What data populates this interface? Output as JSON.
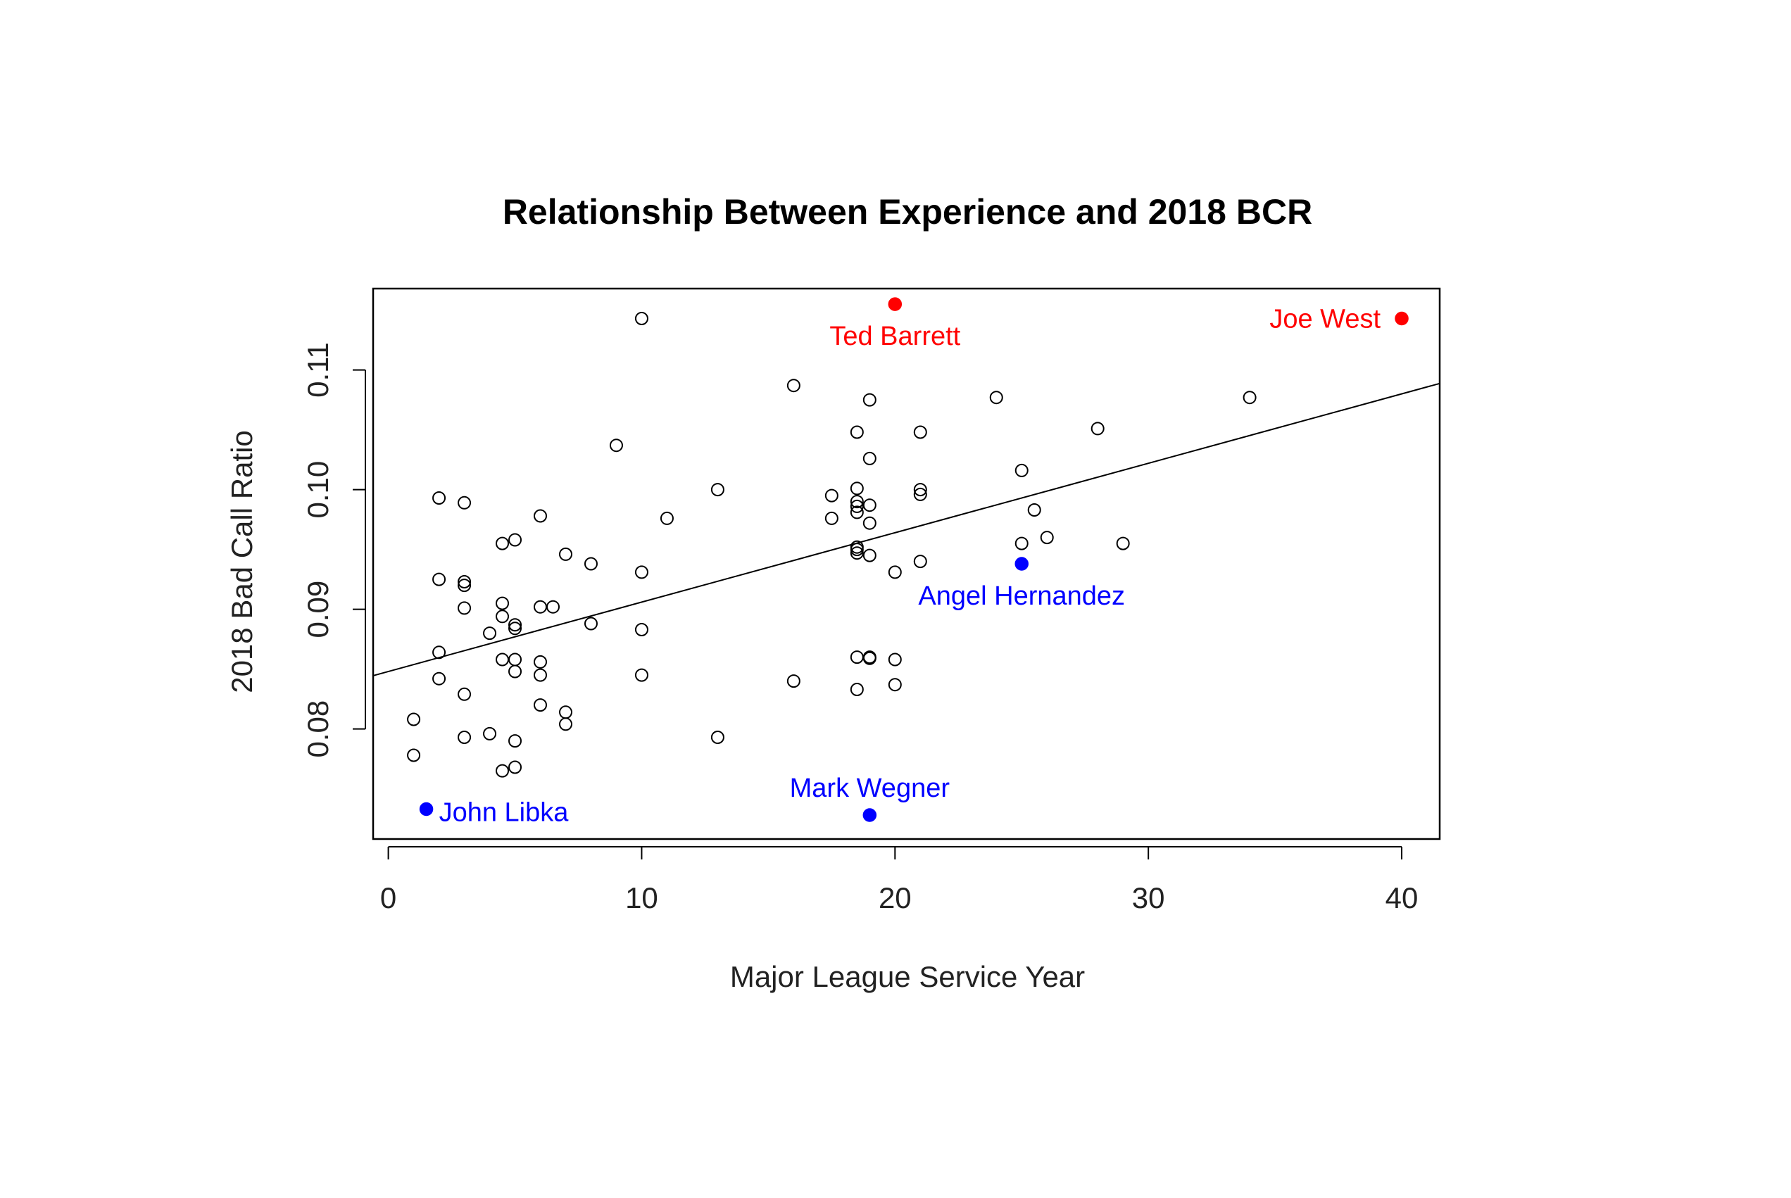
{
  "chart_data": {
    "type": "scatter",
    "title": "Relationship Between Experience and 2018 BCR",
    "xlabel": "Major League Service Year",
    "ylabel": "2018 Bad Call Ratio",
    "xlim": [
      -0.6,
      41.5
    ],
    "ylim": [
      0.0708,
      0.1168
    ],
    "x_ticks": [
      0,
      10,
      20,
      30,
      40
    ],
    "x_tick_labels": [
      "0",
      "10",
      "20",
      "30",
      "40"
    ],
    "y_ticks": [
      0.08,
      0.09,
      0.1,
      0.11
    ],
    "y_tick_labels": [
      "0.08",
      "0.09",
      "0.10",
      "0.11"
    ],
    "grid": false,
    "regression_line": {
      "intercept": 0.0848,
      "slope": 0.00058
    },
    "points": [
      {
        "x": 1.0,
        "y": 0.0808
      },
      {
        "x": 1.0,
        "y": 0.0778
      },
      {
        "x": 2.0,
        "y": 0.0993
      },
      {
        "x": 2.0,
        "y": 0.0925
      },
      {
        "x": 2.0,
        "y": 0.0864
      },
      {
        "x": 2.0,
        "y": 0.0842
      },
      {
        "x": 3.0,
        "y": 0.0989
      },
      {
        "x": 3.0,
        "y": 0.0923
      },
      {
        "x": 3.0,
        "y": 0.092
      },
      {
        "x": 3.0,
        "y": 0.0901
      },
      {
        "x": 3.0,
        "y": 0.0829
      },
      {
        "x": 3.0,
        "y": 0.0793
      },
      {
        "x": 4.0,
        "y": 0.088
      },
      {
        "x": 4.0,
        "y": 0.0796
      },
      {
        "x": 4.5,
        "y": 0.0955
      },
      {
        "x": 4.5,
        "y": 0.0905
      },
      {
        "x": 4.5,
        "y": 0.0894
      },
      {
        "x": 4.5,
        "y": 0.0858
      },
      {
        "x": 4.5,
        "y": 0.0765
      },
      {
        "x": 5.0,
        "y": 0.0958
      },
      {
        "x": 5.0,
        "y": 0.0887
      },
      {
        "x": 5.0,
        "y": 0.0884
      },
      {
        "x": 5.0,
        "y": 0.0858
      },
      {
        "x": 5.0,
        "y": 0.0848
      },
      {
        "x": 5.0,
        "y": 0.079
      },
      {
        "x": 5.0,
        "y": 0.0768
      },
      {
        "x": 6.0,
        "y": 0.0978
      },
      {
        "x": 6.0,
        "y": 0.0902
      },
      {
        "x": 6.0,
        "y": 0.0856
      },
      {
        "x": 6.0,
        "y": 0.0845
      },
      {
        "x": 6.0,
        "y": 0.082
      },
      {
        "x": 6.5,
        "y": 0.0902
      },
      {
        "x": 7.0,
        "y": 0.0946
      },
      {
        "x": 7.0,
        "y": 0.0814
      },
      {
        "x": 7.0,
        "y": 0.0804
      },
      {
        "x": 8.0,
        "y": 0.0938
      },
      {
        "x": 8.0,
        "y": 0.0888
      },
      {
        "x": 9.0,
        "y": 0.1037
      },
      {
        "x": 10.0,
        "y": 0.1143
      },
      {
        "x": 10.0,
        "y": 0.0931
      },
      {
        "x": 10.0,
        "y": 0.0883
      },
      {
        "x": 10.0,
        "y": 0.0845
      },
      {
        "x": 11.0,
        "y": 0.0976
      },
      {
        "x": 13.0,
        "y": 0.1
      },
      {
        "x": 13.0,
        "y": 0.0793
      },
      {
        "x": 16.0,
        "y": 0.1087
      },
      {
        "x": 16.0,
        "y": 0.084
      },
      {
        "x": 17.5,
        "y": 0.0995
      },
      {
        "x": 17.5,
        "y": 0.0976
      },
      {
        "x": 18.5,
        "y": 0.1048
      },
      {
        "x": 18.5,
        "y": 0.1001
      },
      {
        "x": 18.5,
        "y": 0.099
      },
      {
        "x": 18.5,
        "y": 0.0986
      },
      {
        "x": 18.5,
        "y": 0.0981
      },
      {
        "x": 18.5,
        "y": 0.0952
      },
      {
        "x": 18.5,
        "y": 0.095
      },
      {
        "x": 18.5,
        "y": 0.0947
      },
      {
        "x": 18.5,
        "y": 0.086
      },
      {
        "x": 18.5,
        "y": 0.0833
      },
      {
        "x": 19.0,
        "y": 0.1075
      },
      {
        "x": 19.0,
        "y": 0.1026
      },
      {
        "x": 19.0,
        "y": 0.0987
      },
      {
        "x": 19.0,
        "y": 0.0972
      },
      {
        "x": 19.0,
        "y": 0.0945
      },
      {
        "x": 19.0,
        "y": 0.086
      },
      {
        "x": 19.0,
        "y": 0.0859
      },
      {
        "x": 20.0,
        "y": 0.0931
      },
      {
        "x": 20.0,
        "y": 0.0858
      },
      {
        "x": 20.0,
        "y": 0.0837
      },
      {
        "x": 21.0,
        "y": 0.1048
      },
      {
        "x": 21.0,
        "y": 0.1
      },
      {
        "x": 21.0,
        "y": 0.0996
      },
      {
        "x": 21.0,
        "y": 0.094
      },
      {
        "x": 24.0,
        "y": 0.1077
      },
      {
        "x": 25.0,
        "y": 0.1016
      },
      {
        "x": 25.0,
        "y": 0.0955
      },
      {
        "x": 25.5,
        "y": 0.0983
      },
      {
        "x": 26.0,
        "y": 0.096
      },
      {
        "x": 28.0,
        "y": 0.1051
      },
      {
        "x": 29.0,
        "y": 0.0955
      },
      {
        "x": 34.0,
        "y": 0.1077
      }
    ],
    "highlighted": [
      {
        "name": "Ted Barrett",
        "x": 20.0,
        "y": 0.1155,
        "color": "#ff0000",
        "label_pos": "below"
      },
      {
        "name": "Joe West",
        "x": 40.0,
        "y": 0.1143,
        "color": "#ff0000",
        "label_pos": "left"
      },
      {
        "name": "Angel Hernandez",
        "x": 25.0,
        "y": 0.0938,
        "color": "#0000ff",
        "label_pos": "below"
      },
      {
        "name": "John Libka",
        "x": 1.5,
        "y": 0.0733,
        "color": "#0000ff",
        "label_pos": "right"
      },
      {
        "name": "Mark Wegner",
        "x": 19.0,
        "y": 0.0728,
        "color": "#0000ff",
        "label_pos": "above"
      }
    ]
  }
}
